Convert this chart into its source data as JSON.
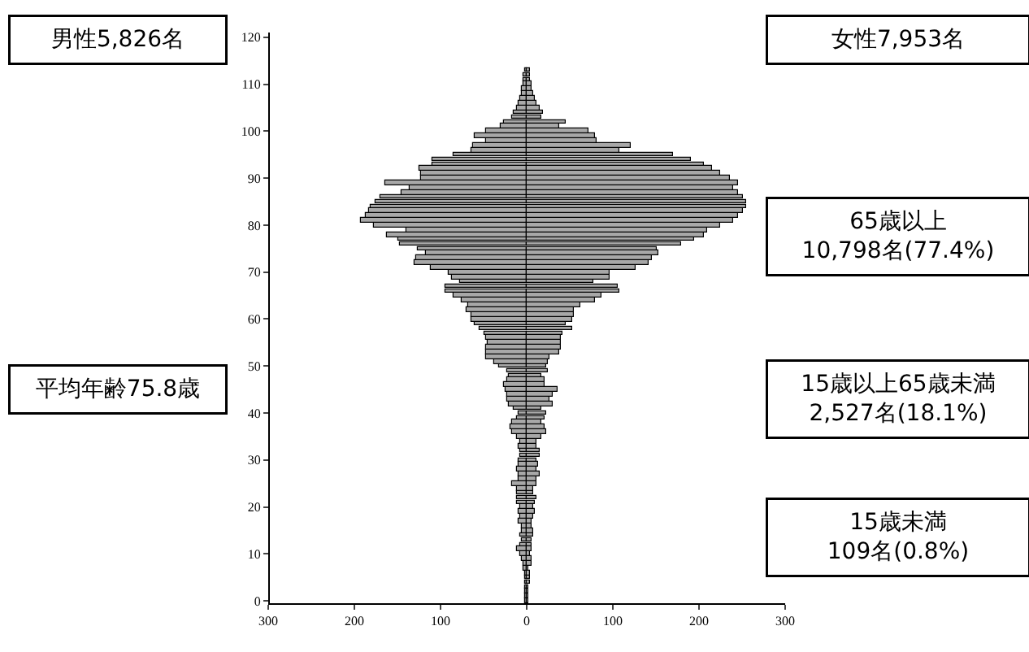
{
  "chart_data": {
    "type": "bar",
    "orientation": "horizontal",
    "stacked": true,
    "x": [
      0,
      1,
      2,
      3,
      4,
      5,
      6,
      7,
      8,
      9,
      10,
      11,
      12,
      13,
      14,
      15,
      16,
      17,
      18,
      19,
      20,
      21,
      22,
      23,
      24,
      25,
      26,
      27,
      28,
      29,
      30,
      31,
      32,
      33,
      34,
      35,
      36,
      37,
      38,
      39,
      40,
      41,
      42,
      43,
      44,
      45,
      46,
      47,
      48,
      49,
      50,
      51,
      52,
      53,
      54,
      55,
      56,
      57,
      58,
      59,
      60,
      61,
      62,
      63,
      64,
      65,
      66,
      67,
      68,
      69,
      70,
      71,
      72,
      73,
      74,
      75,
      76,
      77,
      78,
      79,
      80,
      81,
      82,
      83,
      84,
      85,
      86,
      87,
      88,
      89,
      90,
      91,
      92,
      93,
      94,
      95,
      96,
      97,
      98,
      99,
      100,
      101,
      102,
      103,
      104,
      105,
      106,
      107,
      108,
      109,
      110,
      111,
      112,
      113
    ],
    "series": [
      {
        "color": "#a8a8a8",
        "values": [
          -1,
          -1,
          -1,
          -2,
          -1,
          -2,
          -2,
          -3,
          -3,
          -5,
          -7,
          -11,
          -8,
          -5,
          -7,
          -6,
          -6,
          -10,
          -7,
          -10,
          -7,
          -11,
          -12,
          -11,
          -12,
          -17,
          -10,
          -10,
          -12,
          -10,
          -10,
          -7,
          -7,
          -10,
          -7,
          -12,
          -17,
          -18,
          -17,
          -12,
          -10,
          -15,
          -20,
          -22,
          -22,
          -25,
          -27,
          -22,
          -20,
          -22,
          -32,
          -37,
          -47,
          -47,
          -47,
          -45,
          -47,
          -50,
          -55,
          -60,
          -65,
          -65,
          -70,
          -67,
          -75,
          -85,
          -95,
          -95,
          -77,
          -87,
          -90,
          -112,
          -130,
          -128,
          -117,
          -127,
          -147,
          -150,
          -162,
          -140,
          -177,
          -192,
          -187,
          -183,
          -182,
          -175,
          -170,
          -145,
          -135,
          -164,
          -122,
          -122,
          -125,
          -110,
          -110,
          -85,
          -65,
          -63,
          -47,
          -60,
          -47,
          -30,
          -27,
          -17,
          -15,
          -12,
          -10,
          -7,
          -6,
          -5,
          -4,
          -3,
          -3,
          -2
        ]
      },
      {
        "color": "#a8a8a8",
        "values": [
          1,
          1,
          1,
          1,
          3,
          3,
          3,
          2,
          5,
          5,
          3,
          5,
          5,
          5,
          8,
          7,
          6,
          5,
          7,
          10,
          7,
          10,
          11,
          8,
          7,
          12,
          12,
          15,
          12,
          13,
          12,
          15,
          15,
          12,
          12,
          17,
          22,
          20,
          17,
          20,
          22,
          17,
          30,
          27,
          30,
          35,
          20,
          20,
          17,
          25,
          22,
          25,
          27,
          37,
          40,
          40,
          40,
          42,
          52,
          45,
          53,
          55,
          55,
          62,
          80,
          87,
          107,
          105,
          77,
          97,
          97,
          127,
          142,
          145,
          152,
          150,
          180,
          195,
          205,
          210,
          225,
          240,
          245,
          250,
          255,
          255,
          250,
          245,
          240,
          245,
          235,
          225,
          215,
          205,
          190,
          170,
          107,
          120,
          81,
          80,
          72,
          37,
          45,
          17,
          18,
          15,
          12,
          10,
          8,
          6,
          5,
          4,
          3,
          3
        ]
      }
    ],
    "xlim": [
      -300,
      300
    ],
    "xticks": [
      {
        "value": -300,
        "label": "300"
      },
      {
        "value": -200,
        "label": "200"
      },
      {
        "value": -100,
        "label": "100"
      },
      0,
      100,
      200,
      300
    ],
    "ylim": [
      -0.5,
      121
    ],
    "yticks": [
      0,
      10,
      20,
      30,
      40,
      50,
      60,
      70,
      80,
      90,
      100,
      110,
      120
    ],
    "annotations": [
      "男性5,826名",
      "女性7,953名",
      "65歳以上\n10,798名(77.4%)",
      "平均年齢75.8歳",
      "15歳以上65歳未満\n2,527名(18.1%)",
      "15歳未満\n109名(0.8%)"
    ]
  }
}
